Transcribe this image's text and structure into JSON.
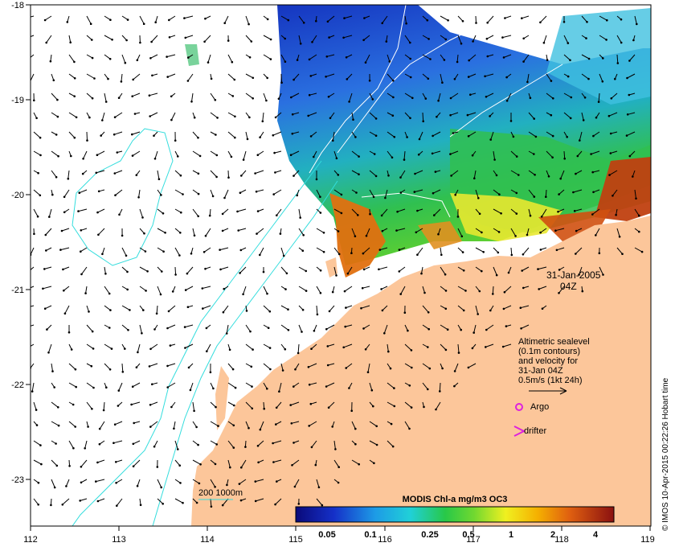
{
  "map": {
    "x_ticks": [
      "112",
      "113",
      "114",
      "115",
      "116",
      "117",
      "118",
      "119"
    ],
    "y_ticks": [
      "-18",
      "-19",
      "-20",
      "-21",
      "-22",
      "-23"
    ],
    "date": "31-Jan-2005",
    "time": "04Z",
    "legend_lines": [
      "Altimetric sealevel",
      "(0.1m contours)",
      "and velocity for",
      "31-Jan 04Z",
      "0.5m/s (1kt 24h)"
    ],
    "argo_label": "Argo",
    "drifter_label": "drifter",
    "depth_label": "200  1000m",
    "colorbar_title": "MODIS Chl-a mg/m3 OC3",
    "colorbar_ticks": [
      "0.05",
      "0.1",
      "0.25",
      "0.5",
      "1",
      "2",
      "4"
    ],
    "credit": "© IMOS 10-Apr-2015 00:22:26 Hobart time"
  },
  "colors": {
    "land": "#fcc69a",
    "contour": "#33dddd",
    "argo": "#dd22dd",
    "drifter": "#dd22dd"
  }
}
